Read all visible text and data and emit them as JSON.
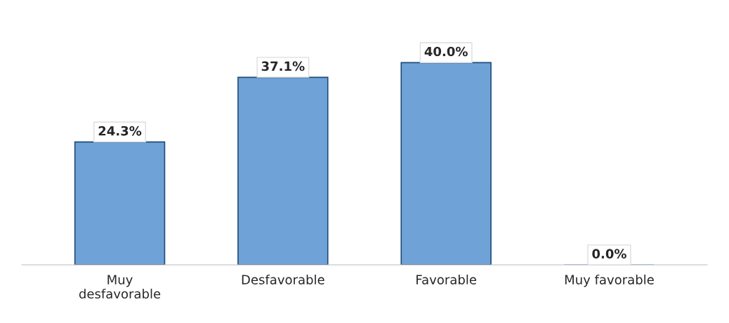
{
  "chart_data": {
    "type": "bar",
    "categories": [
      "Muy\ndesfavorable",
      "Desfavorable",
      "Favorable",
      "Muy favorable"
    ],
    "values": [
      24.3,
      37.1,
      40.0,
      0.0
    ],
    "value_labels": [
      "24.3%",
      "37.1%",
      "40.0%",
      "0.0%"
    ],
    "color": "#6fa3d8",
    "grid": false,
    "legend": false
  }
}
